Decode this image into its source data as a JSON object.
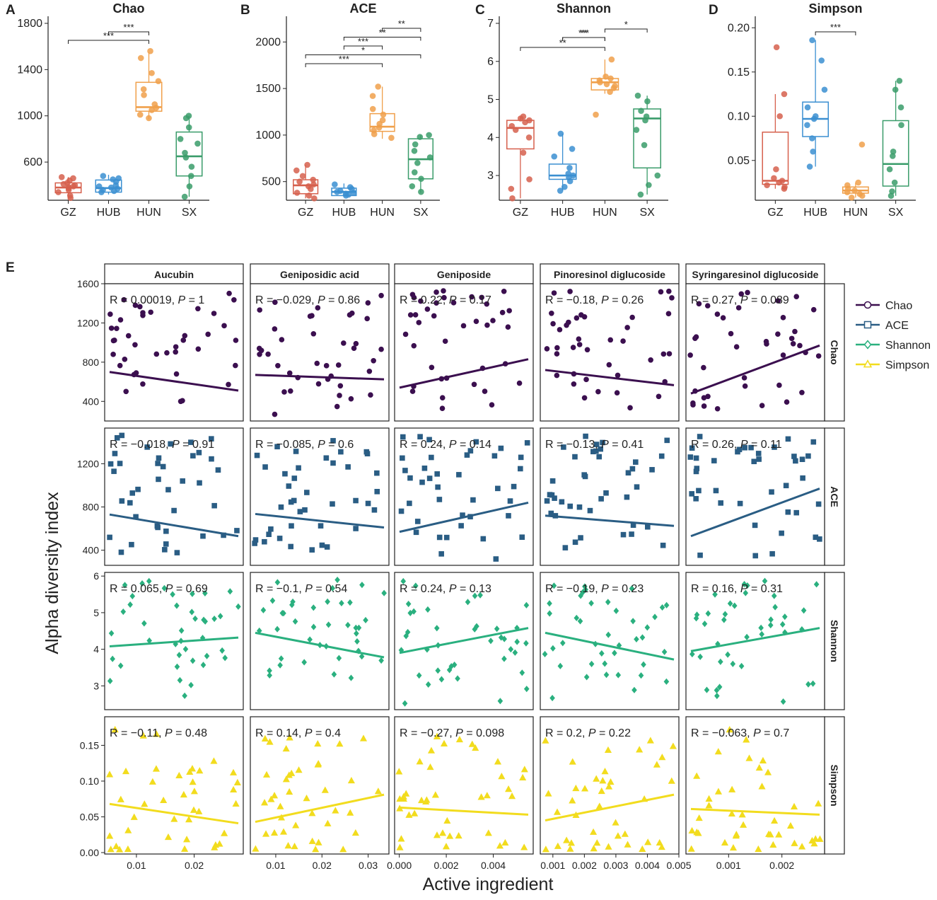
{
  "chart_data": {
    "group_labels": [
      "GZ",
      "HUB",
      "HUN",
      "SX"
    ],
    "colors": {
      "GZ": "#d6604d",
      "HUB": "#3b8fd1",
      "HUN": "#f0a04b",
      "SX": "#3a9c6a",
      "Chao": "#3b0f4f",
      "ACE": "#2a5d84",
      "Shannon": "#2ab07f",
      "Simpson": "#f2dc1e"
    },
    "boxplots": [
      {
        "panel": "A",
        "title": "Chao",
        "ylim": [
          270,
          1800
        ],
        "yticks": [
          600,
          1000,
          1400,
          1800
        ],
        "boxes": [
          {
            "group": "GZ",
            "q1": 335,
            "median": 380,
            "q3": 420,
            "whisker_low": 280,
            "whisker_high": 470,
            "points": [
              470,
              460,
              440,
              420,
              410,
              400,
              390,
              385,
              375,
              360,
              340,
              310,
              290
            ]
          },
          {
            "group": "HUB",
            "q1": 340,
            "median": 375,
            "q3": 445,
            "whisker_low": 320,
            "whisker_high": 490,
            "points": [
              480,
              460,
              450,
              430,
              400,
              390,
              380,
              370,
              360,
              350,
              340
            ]
          },
          {
            "group": "HUN",
            "q1": 1040,
            "median": 1075,
            "q3": 1290,
            "whisker_low": 970,
            "whisker_high": 1550,
            "points": [
              1560,
              1500,
              1370,
              1300,
              1230,
              1180,
              1100,
              1070,
              1050,
              1010,
              980
            ]
          },
          {
            "group": "SX",
            "q1": 480,
            "median": 650,
            "q3": 860,
            "whisker_low": 300,
            "whisker_high": 1000,
            "points": [
              1000,
              980,
              900,
              800,
              760,
              680,
              640,
              560,
              480,
              390,
              300
            ]
          }
        ],
        "brackets": [
          {
            "from": "HUB",
            "to": "HUN",
            "label": "***",
            "level": 0
          },
          {
            "from": "GZ",
            "to": "HUN",
            "label": "***",
            "level": 1
          }
        ]
      },
      {
        "panel": "B",
        "title": "ACE",
        "ylim": [
          300,
          2200
        ],
        "yticks": [
          500,
          1000,
          1500,
          2000
        ],
        "boxes": [
          {
            "group": "GZ",
            "q1": 370,
            "median": 460,
            "q3": 520,
            "whisker_low": 320,
            "whisker_high": 680,
            "points": [
              680,
              620,
              560,
              520,
              500,
              470,
              450,
              420,
              380,
              350,
              320
            ]
          },
          {
            "group": "HUB",
            "q1": 350,
            "median": 390,
            "q3": 430,
            "whisker_low": 340,
            "whisker_high": 480,
            "points": [
              470,
              440,
              420,
              400,
              390,
              380,
              370,
              360,
              350
            ]
          },
          {
            "group": "HUN",
            "q1": 1040,
            "median": 1090,
            "q3": 1230,
            "whisker_low": 960,
            "whisker_high": 1520,
            "points": [
              1520,
              1420,
              1280,
              1220,
              1160,
              1120,
              1080,
              1050,
              1010,
              970
            ]
          },
          {
            "group": "SX",
            "q1": 530,
            "median": 740,
            "q3": 960,
            "whisker_low": 380,
            "whisker_high": 1000,
            "points": [
              1000,
              980,
              900,
              830,
              760,
              700,
              600,
              530,
              450,
              390
            ]
          }
        ],
        "brackets": [
          {
            "from": "HUN",
            "to": "SX",
            "label": "**",
            "level": 0
          },
          {
            "from": "HUB",
            "to": "SX",
            "label": "**",
            "level": 1
          },
          {
            "from": "HUB",
            "to": "HUN",
            "label": "***",
            "level": 2
          },
          {
            "from": "GZ",
            "to": "SX",
            "label": "*",
            "level": 3
          },
          {
            "from": "GZ",
            "to": "HUN",
            "label": "***",
            "level": 4
          }
        ]
      },
      {
        "panel": "C",
        "title": "Shannon",
        "ylim": [
          2.35,
          7.0
        ],
        "yticks": [
          3,
          4,
          5,
          6,
          7
        ],
        "boxes": [
          {
            "group": "GZ",
            "q1": 3.7,
            "median": 4.25,
            "q3": 4.45,
            "whisker_low": 2.4,
            "whisker_high": 4.55,
            "points": [
              4.55,
              4.5,
              4.45,
              4.4,
              4.3,
              4.2,
              4.0,
              3.6,
              2.9,
              2.65,
              2.4
            ]
          },
          {
            "group": "HUB",
            "q1": 2.9,
            "median": 3.0,
            "q3": 3.3,
            "whisker_low": 2.6,
            "whisker_high": 4.1,
            "points": [
              4.1,
              3.7,
              3.5,
              3.2,
              3.05,
              3.0,
              2.95,
              2.85,
              2.7,
              2.6
            ]
          },
          {
            "group": "HUN",
            "q1": 5.25,
            "median": 5.45,
            "q3": 5.55,
            "whisker_low": 5.15,
            "whisker_high": 6.05,
            "points": [
              6.05,
              5.6,
              5.55,
              5.5,
              5.45,
              5.4,
              5.35,
              5.3,
              5.2,
              4.6
            ]
          },
          {
            "group": "SX",
            "q1": 3.2,
            "median": 4.5,
            "q3": 4.75,
            "whisker_low": 2.5,
            "whisker_high": 5.1,
            "points": [
              5.1,
              4.95,
              4.7,
              4.55,
              4.45,
              4.2,
              3.8,
              3.0,
              2.75,
              2.5
            ]
          }
        ],
        "brackets": [
          {
            "from": "HUN",
            "to": "SX",
            "label": "*",
            "level": 0
          },
          {
            "from": "HUB",
            "to": "HUN",
            "label": "***",
            "level": 0
          },
          {
            "from": "HUB",
            "to": "HUN",
            "label": "**",
            "level": -1
          }
        ],
        "extra_bracket": {
          "from": "GZ",
          "to": "HUN",
          "label": "**"
        }
      },
      {
        "panel": "D",
        "title": "Simpson",
        "ylim": [
          0.005,
          0.205
        ],
        "yticks": [
          0.05,
          0.1,
          0.15,
          0.2
        ],
        "boxes": [
          {
            "group": "GZ",
            "q1": 0.023,
            "median": 0.027,
            "q3": 0.082,
            "whisker_low": 0.018,
            "whisker_high": 0.125,
            "points": [
              0.178,
              0.125,
              0.1,
              0.04,
              0.03,
              0.027,
              0.025,
              0.022,
              0.02,
              0.018
            ]
          },
          {
            "group": "HUB",
            "q1": 0.077,
            "median": 0.097,
            "q3": 0.116,
            "whisker_low": 0.043,
            "whisker_high": 0.186,
            "points": [
              0.186,
              0.163,
              0.13,
              0.11,
              0.1,
              0.097,
              0.09,
              0.075,
              0.06,
              0.043
            ]
          },
          {
            "group": "HUN",
            "q1": 0.013,
            "median": 0.016,
            "q3": 0.02,
            "whisker_low": 0.008,
            "whisker_high": 0.025,
            "points": [
              0.068,
              0.025,
              0.022,
              0.018,
              0.016,
              0.014,
              0.012,
              0.01,
              0.008
            ]
          },
          {
            "group": "SX",
            "q1": 0.021,
            "median": 0.046,
            "q3": 0.095,
            "whisker_low": 0.01,
            "whisker_high": 0.14,
            "points": [
              0.14,
              0.13,
              0.11,
              0.09,
              0.06,
              0.055,
              0.04,
              0.025,
              0.015,
              0.01
            ]
          }
        ],
        "brackets": [
          {
            "from": "HUB",
            "to": "HUN",
            "label": "***",
            "level": 0
          }
        ]
      }
    ],
    "scatter": {
      "panel": "E",
      "ylabel": "Alpha diversity index",
      "xlabel": "Active ingredient",
      "columns": [
        "Aucubin",
        "Geniposidic acid",
        "Geniposide",
        "Pinoresinol diglucoside",
        "Syringaresinol diglucoside"
      ],
      "rows": [
        "Chao",
        "ACE",
        "Shannon",
        "Simpson"
      ],
      "markers": {
        "Chao": "circle",
        "ACE": "square",
        "Shannon": "diamond",
        "Simpson": "triangle"
      },
      "x_axes": [
        {
          "xlim": [
            0.0045,
            0.0285
          ],
          "ticks": [
            0.01,
            0.02
          ],
          "labels": [
            "0.01",
            "0.02"
          ]
        },
        {
          "xlim": [
            0.0045,
            0.0345
          ],
          "ticks": [
            0.01,
            0.02,
            0.03
          ],
          "labels": [
            "0.01",
            "0.02",
            "0.03"
          ]
        },
        {
          "xlim": [
            -0.0002,
            0.0057
          ],
          "ticks": [
            0.0,
            0.002,
            0.004
          ],
          "labels": [
            "0.000",
            "0.002",
            "0.004"
          ]
        },
        {
          "xlim": [
            0.0006,
            0.005
          ],
          "ticks": [
            0.001,
            0.002,
            0.003,
            0.004,
            0.005
          ],
          "labels": [
            "0.001",
            "0.002",
            "0.003",
            "0.004",
            "0.005"
          ]
        },
        {
          "xlim": [
            0.0002,
            0.0028
          ],
          "ticks": [
            0.001,
            0.002
          ],
          "labels": [
            "0.001",
            "0.002"
          ]
        }
      ],
      "y_axes": [
        {
          "ylim": [
            200,
            1600
          ],
          "ticks": [
            400,
            800,
            1200,
            1600
          ],
          "labels": [
            "400",
            "800",
            "1200",
            "1600"
          ]
        },
        {
          "ylim": [
            260,
            1530
          ],
          "ticks": [
            400,
            800,
            1200
          ],
          "labels": [
            "400",
            "800",
            "1200"
          ]
        },
        {
          "ylim": [
            2.35,
            6.1
          ],
          "ticks": [
            3,
            4,
            5,
            6
          ],
          "labels": [
            "3",
            "4",
            "5",
            "6"
          ]
        },
        {
          "ylim": [
            -0.002,
            0.19
          ],
          "ticks": [
            0.0,
            0.05,
            0.1,
            0.15
          ],
          "labels": [
            "0.00",
            "0.05",
            "0.10",
            "0.15"
          ]
        }
      ],
      "stats": [
        [
          {
            "r": "R = 0.00019, ",
            "p": " = 1",
            "fit": [
              700,
              510
            ]
          },
          {
            "r": "R = −0.029, ",
            "p": " = 0.86",
            "fit": [
              670,
              625
            ]
          },
          {
            "r": "R = 0.22, ",
            "p": " = 0.17",
            "fit": [
              540,
              830
            ]
          },
          {
            "r": "R = −0.18, ",
            "p": " = 0.26",
            "fit": [
              720,
              565
            ]
          },
          {
            "r": "R = 0.27, ",
            "p": " = 0.089",
            "fit": [
              480,
              970
            ]
          }
        ],
        [
          {
            "r": "R = −0.018, ",
            "p": " = 0.91",
            "fit": [
              730,
              530
            ]
          },
          {
            "r": "R = −0.085, ",
            "p": " = 0.6",
            "fit": [
              735,
              610
            ]
          },
          {
            "r": "R = 0.24, ",
            "p": " = 0.14",
            "fit": [
              570,
              840
            ]
          },
          {
            "r": "R = −0.13, ",
            "p": " = 0.41",
            "fit": [
              720,
              625
            ]
          },
          {
            "r": "R = 0.26, ",
            "p": " = 0.11",
            "fit": [
              530,
              970
            ]
          }
        ],
        [
          {
            "r": "R = 0.065, ",
            "p": " = 0.69",
            "fit": [
              4.08,
              4.32
            ]
          },
          {
            "r": "R = −0.1, ",
            "p": " = 0.54",
            "fit": [
              4.45,
              3.78
            ]
          },
          {
            "r": "R = 0.24, ",
            "p": " = 0.13",
            "fit": [
              3.9,
              4.58
            ]
          },
          {
            "r": "R = −0.19, ",
            "p": " = 0.23",
            "fit": [
              4.45,
              3.72
            ]
          },
          {
            "r": "R = 0.16, ",
            "p": " = 0.31",
            "fit": [
              3.95,
              4.58
            ]
          }
        ],
        [
          {
            "r": "R = −0.11, ",
            "p": " = 0.48",
            "fit": [
              0.068,
              0.041
            ]
          },
          {
            "r": "R = 0.14, ",
            "p": " = 0.4",
            "fit": [
              0.043,
              0.081
            ]
          },
          {
            "r": "R = −0.27, ",
            "p": " = 0.098",
            "fit": [
              0.063,
              0.053
            ]
          },
          {
            "r": "R = 0.2, ",
            "p": " = 0.22",
            "fit": [
              0.045,
              0.081
            ]
          },
          {
            "r": "R = −0.063, ",
            "p": " = 0.7",
            "fit": [
              0.061,
              0.053
            ]
          }
        ]
      ]
    }
  }
}
